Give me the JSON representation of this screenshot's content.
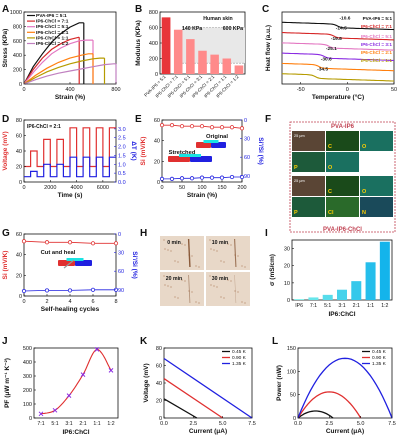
{
  "colors": {
    "pvaip6": "#111111",
    "ip6_71": "#d62728",
    "ip6_51": "#e377c2",
    "ip6_21": "#ff7f0e",
    "ip6_11": "#b59b00",
    "ip6_12": "#c080c0",
    "accent_red": "#e03030",
    "accent_blue": "#2020e0",
    "bar_dark": "#e8353a",
    "bar_light": "#ff8a8a",
    "cyan_bar": "#19e3e3",
    "purple_line": "#8a2be2",
    "gold": "#ffd000"
  },
  "chart_data": [
    {
      "panel": "A",
      "type": "line",
      "xlabel": "Strain (%)",
      "ylabel": "Stress (KPa)",
      "xlim": [
        0,
        800
      ],
      "ylim": [
        0,
        1000
      ],
      "xticks": [
        0,
        400,
        800
      ],
      "yticks": [
        0,
        200,
        400,
        600,
        800,
        1000
      ],
      "series": [
        {
          "name": "PVA-IP6 = 5:1",
          "color_key": "pvaip6",
          "x": [
            0,
            80,
            160,
            240,
            320,
            400,
            480,
            520
          ],
          "y": [
            0,
            240,
            420,
            580,
            700,
            790,
            850,
            850
          ]
        },
        {
          "name": "IP6-ChCl = 7:1",
          "color_key": "ip6_71",
          "x": [
            0,
            80,
            160,
            240,
            320,
            400,
            480
          ],
          "y": [
            0,
            200,
            360,
            480,
            560,
            620,
            650
          ]
        },
        {
          "name": "IP6-ChCl = 5:1",
          "color_key": "ip6_51",
          "x": [
            0,
            80,
            160,
            240,
            320,
            400,
            480,
            540,
            600
          ],
          "y": [
            0,
            160,
            300,
            420,
            500,
            560,
            600,
            610,
            610
          ]
        },
        {
          "name": "IP6-ChCl = 2:1",
          "color_key": "ip6_21",
          "x": [
            0,
            100,
            200,
            300,
            400,
            500,
            560,
            600
          ],
          "y": [
            0,
            120,
            220,
            300,
            360,
            400,
            420,
            420
          ]
        },
        {
          "name": "IP6-ChCl = 1:1",
          "color_key": "ip6_11",
          "x": [
            0,
            100,
            200,
            300,
            400,
            500,
            600,
            660,
            700
          ],
          "y": [
            0,
            90,
            170,
            230,
            280,
            320,
            350,
            360,
            360
          ]
        },
        {
          "name": "IP6-ChCl = 1:2",
          "color_key": "ip6_12",
          "x": [
            0,
            100,
            200,
            300,
            400,
            500,
            600,
            700,
            780,
            800
          ],
          "y": [
            0,
            60,
            110,
            150,
            180,
            210,
            240,
            270,
            280,
            280
          ]
        }
      ],
      "legend": [
        "PVA-IP6 = 5:1",
        "IP6-ChCl = 7:1",
        "IP6-ChCl = 5:1",
        "IP6-ChCl = 2:1",
        "IP6-ChCl = 1:1",
        "IP6-ChCl = 1:2"
      ]
    },
    {
      "panel": "B",
      "type": "bar",
      "ylabel": "Modulus (KPa)",
      "ylim": [
        0,
        800
      ],
      "yticks": [
        0,
        200,
        400,
        600,
        800
      ],
      "categories": [
        "PVA-IP6 = 5:1",
        "IP6-ChCl = 7:1",
        "IP6-ChCl = 5:1",
        "IP6-ChCl = 3:1",
        "IP6-ChCl = 2:1",
        "IP6-ChCl = 1:1",
        "IP6-ChCl = 1:2"
      ],
      "values": [
        730,
        570,
        450,
        300,
        250,
        200,
        110
      ],
      "annotations": {
        "human_skin": "Human skin",
        "low": "140 KPa",
        "high": "600 KPa"
      }
    },
    {
      "panel": "C",
      "type": "line",
      "xlabel": "Temperature (°C)",
      "ylabel": "Heat flow (a.u.)",
      "xlim": [
        -70,
        50
      ],
      "xticks": [
        -50,
        0,
        50
      ],
      "series": [
        {
          "name": "PVA-IP6 = 5:1",
          "color_key": "pvaip6",
          "tg": "-10.6",
          "offset": 5
        },
        {
          "name": "IP6-ChCl = 7:1",
          "color_key": "ip6_71",
          "tg": "-14.5",
          "offset": 4
        },
        {
          "name": "IP6-ChCl = 5:1",
          "color_key": "ip6_51",
          "tg": "-19.8",
          "offset": 3
        },
        {
          "name": "IP6-ChCl = 3:1",
          "color_key": "purple_line",
          "tg": "-25.1",
          "offset": 2
        },
        {
          "name": "IP6-ChCl = 2:1",
          "color_key": "ip6_21",
          "tg": "-30.6",
          "offset": 1
        },
        {
          "name": "IP6-ChCl = 1:1",
          "color_key": "ip6_11",
          "tg": "-34.5",
          "offset": 0
        }
      ]
    },
    {
      "panel": "D",
      "type": "line",
      "xlabel": "Time (s)",
      "ylabel": "Voltage (mV)",
      "ylabel2": "ΔT (K)",
      "label": "IP6-ChCl = 2:1",
      "xlim": [
        0,
        7000
      ],
      "xticks": [
        0,
        2000,
        4000,
        6000
      ],
      "ylim": [
        0,
        80
      ],
      "yticks": [
        0,
        20,
        40,
        60,
        80
      ],
      "y2lim": [
        0,
        3.5
      ],
      "y2ticks": [
        0,
        0.5,
        1.0,
        1.5,
        2.0,
        2.5,
        3.0
      ],
      "voltage": {
        "x": [
          0,
          500,
          1000,
          1500,
          2000,
          2500,
          3000,
          3500,
          4000,
          4500,
          5000,
          5500,
          6000,
          6500
        ],
        "levels": [
          20,
          40,
          20,
          55,
          20,
          55,
          20,
          70,
          20,
          70,
          20,
          70,
          20,
          70
        ]
      },
      "delta_t": {
        "levels": [
          0.3,
          0.6,
          0.3,
          1.0,
          0.3,
          1.0,
          0.3,
          1.4,
          0.3,
          1.4,
          0.3,
          1.4,
          0.3,
          1.4
        ]
      }
    },
    {
      "panel": "E",
      "type": "scatter",
      "xlabel": "Strain (%)",
      "ylabel": "Si (mV/K)",
      "ylabel2": "Si'/Si (%)",
      "xlim": [
        0,
        200
      ],
      "xticks": [
        0,
        50,
        100,
        150,
        200
      ],
      "ylim": [
        0,
        60
      ],
      "yticks": [
        0,
        20,
        40,
        60
      ],
      "y2ticks": [
        0,
        30,
        60,
        90
      ],
      "si": {
        "x": [
          0,
          25,
          50,
          75,
          100,
          125,
          150,
          175,
          200
        ],
        "y": [
          55,
          55,
          54,
          54,
          54,
          53,
          53,
          53,
          52
        ]
      },
      "ratio": {
        "x": [
          0,
          25,
          50,
          75,
          100,
          125,
          150,
          175,
          200
        ],
        "y": [
          95,
          95,
          94,
          94,
          93,
          93,
          93,
          92,
          92
        ]
      },
      "labels": {
        "original": "Original",
        "stretched": "Stretched"
      }
    },
    {
      "panel": "G",
      "type": "scatter",
      "xlabel": "Self-healing cycles",
      "ylabel": "Si (mV/K)",
      "ylabel2": "Si'/Si (%)",
      "xlim": [
        0,
        8
      ],
      "xticks": [
        0,
        2,
        4,
        6,
        8
      ],
      "ylim": [
        0,
        60
      ],
      "yticks": [
        0,
        20,
        40,
        60
      ],
      "y2ticks": [
        0,
        30,
        60,
        90
      ],
      "si": {
        "x": [
          0,
          2,
          4,
          6,
          8
        ],
        "y": [
          53,
          52,
          52,
          51,
          51
        ]
      },
      "ratio": {
        "x": [
          0,
          2,
          4,
          6,
          8
        ],
        "y": [
          92,
          91,
          91,
          90,
          90
        ]
      },
      "labels": {
        "cut_heal": "Cut and heal"
      }
    },
    {
      "panel": "I",
      "type": "bar",
      "xlabel": "IP6:ChCl",
      "ylabel": "σ (mS/cm)",
      "ylim": [
        0,
        35
      ],
      "yticks": [
        0,
        10,
        20,
        30
      ],
      "categories": [
        "IP6",
        "7:1",
        "5:1",
        "3:1",
        "2:1",
        "1:1",
        "1:2"
      ],
      "values": [
        0.5,
        1.5,
        3,
        6,
        11,
        22,
        34
      ]
    },
    {
      "panel": "J",
      "type": "line",
      "xlabel": "IP6:ChCl",
      "ylabel": "PF (μW m⁻¹ K⁻²)",
      "ylim": [
        0,
        500
      ],
      "yticks": [
        0,
        100,
        200,
        300,
        400,
        500
      ],
      "categories": [
        "7:1",
        "5:1",
        "3:1",
        "2:1",
        "1:1",
        "1:2"
      ],
      "values": [
        30,
        55,
        160,
        310,
        490,
        340
      ]
    },
    {
      "panel": "K",
      "type": "line",
      "xlabel": "Current (μA)",
      "ylabel": "Voltage (mV)",
      "xlim": [
        0,
        7.5
      ],
      "xticks": [
        0,
        2.5,
        5.0,
        7.5
      ],
      "ylim": [
        0,
        80
      ],
      "yticks": [
        0,
        20,
        40,
        60,
        80
      ],
      "series": [
        {
          "name": "0.45 K",
          "color_key": "pvaip6",
          "x": [
            0,
            2.8
          ],
          "y": [
            22,
            0
          ]
        },
        {
          "name": "0.90 K",
          "color_key": "accent_red",
          "x": [
            0,
            5.0
          ],
          "y": [
            45,
            0
          ]
        },
        {
          "name": "1.35 K",
          "color_key": "accent_blue",
          "x": [
            0,
            7.5
          ],
          "y": [
            68,
            0
          ]
        }
      ]
    },
    {
      "panel": "L",
      "type": "line",
      "xlabel": "Current (μA)",
      "ylabel": "Power (nW)",
      "xlim": [
        0,
        7.5
      ],
      "xticks": [
        0,
        2.5,
        5.0,
        7.5
      ],
      "ylim": [
        0,
        150
      ],
      "yticks": [
        0,
        50,
        100,
        150
      ],
      "series": [
        {
          "name": "0.45 K",
          "color_key": "pvaip6",
          "isc": 2.8,
          "pmax": 15
        },
        {
          "name": "0.90 K",
          "color_key": "accent_red",
          "isc": 5.0,
          "pmax": 56
        },
        {
          "name": "1.35 K",
          "color_key": "accent_blue",
          "isc": 7.5,
          "pmax": 128
        }
      ]
    }
  ],
  "panels": {
    "F": {
      "label": "F",
      "top_title": "PVA-IP6",
      "bottom_title": "PVA-IP6-ChCl",
      "top_elements": [
        "C",
        "O",
        "P",
        "O"
      ],
      "bottom_elements": [
        "C",
        "O",
        "P",
        "Cl",
        "N"
      ],
      "scale": "25 μm"
    },
    "H": {
      "label": "H",
      "times": [
        "0 min",
        "10 min",
        "20 min",
        "30 min"
      ]
    }
  }
}
